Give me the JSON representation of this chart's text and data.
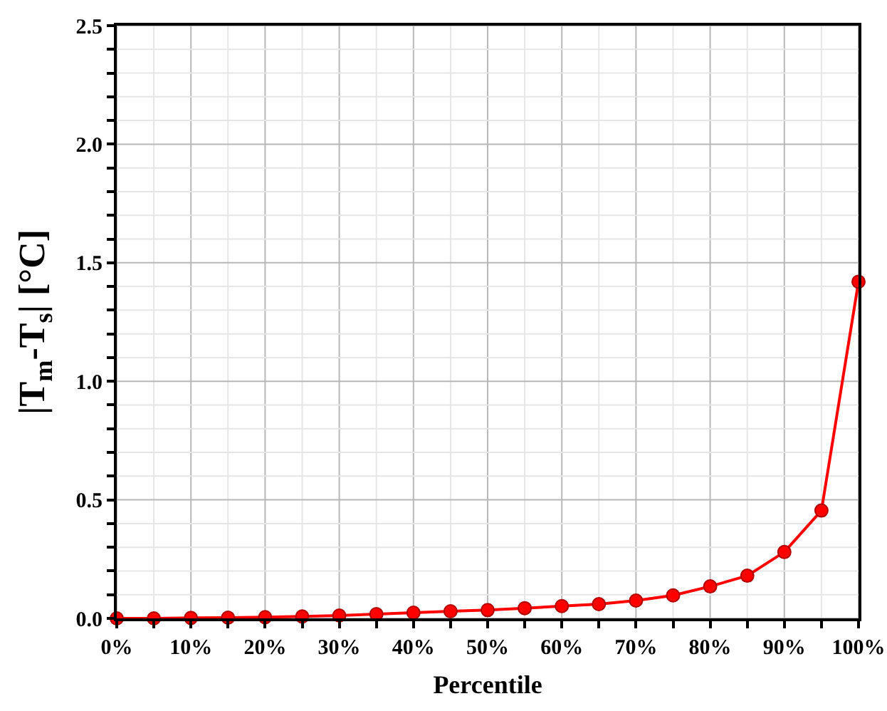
{
  "chart_data": {
    "type": "line",
    "xlabel": "Percentile",
    "ylabel": "|T$_{m}$-T$_{s}$| [°C]",
    "x": [
      0,
      5,
      10,
      15,
      20,
      25,
      30,
      35,
      40,
      45,
      50,
      55,
      60,
      65,
      70,
      75,
      80,
      85,
      90,
      95,
      100
    ],
    "series": [
      {
        "color": "#ff0000",
        "values": [
          0,
          0,
          0.002,
          0.003,
          0.005,
          0.008,
          0.012,
          0.018,
          0.024,
          0.03,
          0.035,
          0.043,
          0.052,
          0.06,
          0.075,
          0.097,
          0.135,
          0.18,
          0.28,
          0.455,
          1.42
        ]
      }
    ],
    "xlim": [
      0,
      100
    ],
    "xticks": [
      {
        "value": 0,
        "label": "0%"
      },
      {
        "value": 5,
        "label": null
      },
      {
        "value": 10,
        "label": "10%"
      },
      {
        "value": 15,
        "label": null
      },
      {
        "value": 20,
        "label": "20%"
      },
      {
        "value": 25,
        "label": null
      },
      {
        "value": 30,
        "label": "30%"
      },
      {
        "value": 35,
        "label": null
      },
      {
        "value": 40,
        "label": "40%"
      },
      {
        "value": 45,
        "label": null
      },
      {
        "value": 50,
        "label": "50%"
      },
      {
        "value": 55,
        "label": null
      },
      {
        "value": 60,
        "label": "60%"
      },
      {
        "value": 65,
        "label": null
      },
      {
        "value": 70,
        "label": "70%"
      },
      {
        "value": 75,
        "label": null
      },
      {
        "value": 80,
        "label": "80%"
      },
      {
        "value": 85,
        "label": null
      },
      {
        "value": 90,
        "label": "90%"
      },
      {
        "value": 95,
        "label": null
      },
      {
        "value": 100,
        "label": "100%"
      }
    ],
    "ylim": [
      0,
      2.5
    ],
    "yticks": [
      {
        "value": 0,
        "label": "0.0"
      },
      {
        "value": 0.1,
        "label": null
      },
      {
        "value": 0.2,
        "label": null
      },
      {
        "value": 0.3,
        "label": null
      },
      {
        "value": 0.4,
        "label": null
      },
      {
        "value": 0.5,
        "label": "0.5"
      },
      {
        "value": 0.6,
        "label": null
      },
      {
        "value": 0.7,
        "label": null
      },
      {
        "value": 0.8,
        "label": null
      },
      {
        "value": 0.9,
        "label": null
      },
      {
        "value": 1,
        "label": "1.0"
      },
      {
        "value": 1.1,
        "label": null
      },
      {
        "value": 1.2,
        "label": null
      },
      {
        "value": 1.3,
        "label": null
      },
      {
        "value": 1.4,
        "label": null
      },
      {
        "value": 1.5,
        "label": "1.5"
      },
      {
        "value": 1.6,
        "label": null
      },
      {
        "value": 1.7,
        "label": null
      },
      {
        "value": 1.8,
        "label": null
      },
      {
        "value": 1.9,
        "label": null
      },
      {
        "value": 2,
        "label": "2.0"
      },
      {
        "value": 2.1,
        "label": null
      },
      {
        "value": 2.2,
        "label": null
      },
      {
        "value": 2.3,
        "label": null
      },
      {
        "value": 2.4,
        "label": null
      },
      {
        "value": 2.5,
        "label": "2.5"
      }
    ],
    "grid": true,
    "marker": "circle",
    "line_style": "solid"
  }
}
